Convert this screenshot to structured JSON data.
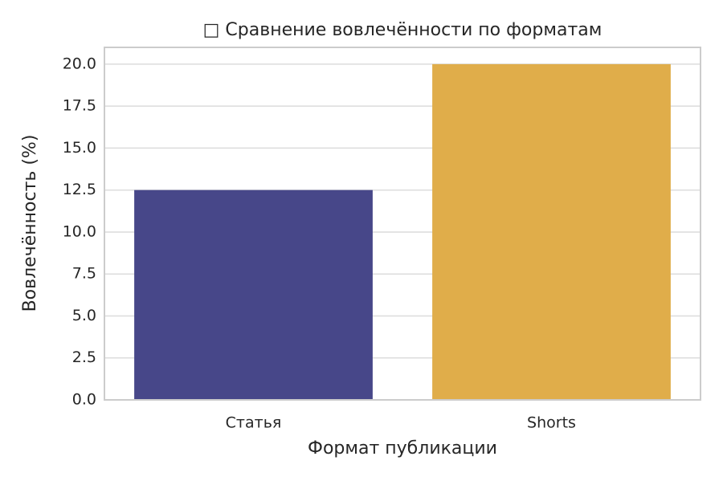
{
  "chart_data": {
    "type": "bar",
    "title": "□ Сравнение вовлечённости по форматам",
    "x_label": "Формат публикации",
    "y_label": "Вовлечённость (%)",
    "categories": [
      "Статья",
      "Shorts"
    ],
    "values": [
      12.5,
      20
    ],
    "colors": [
      "#474789",
      "#e0ad4a"
    ],
    "ylim": [
      0,
      21
    ],
    "yticks": [
      {
        "value": 0,
        "label": "0.0"
      },
      2.5,
      {
        "value": 5,
        "label": "5.0"
      },
      7.5,
      {
        "value": 10,
        "label": "10.0"
      },
      12.5,
      {
        "value": 15,
        "label": "15.0"
      },
      17.5,
      {
        "value": 20,
        "label": "20.0"
      }
    ],
    "grid": true
  }
}
